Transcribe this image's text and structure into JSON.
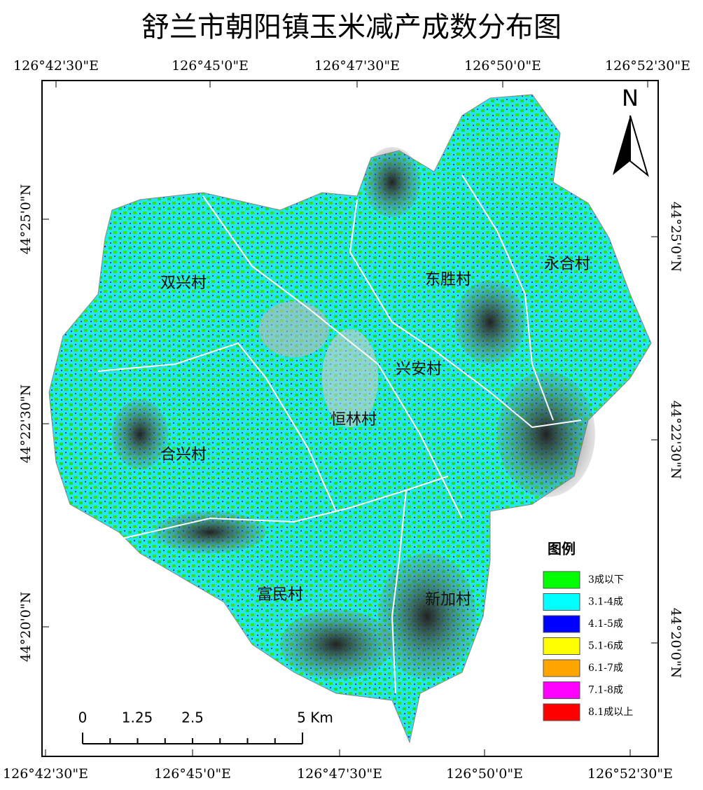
{
  "title": "舒兰市朝阳镇玉米减产成数分布图",
  "graticule": {
    "top": [
      "126°42'30\"E",
      "126°45'0\"E",
      "126°47'30\"E",
      "126°50'0\"E",
      "126°52'30\"E"
    ],
    "bottom": [
      "126°42'30\"E",
      "126°45'0\"E",
      "126°47'30\"E",
      "126°50'0\"E",
      "126°52'30\"E"
    ],
    "left": [
      "44°25'0\"N",
      "44°22'30\"N",
      "44°20'0\"N"
    ],
    "right": [
      "44°25'0\"N",
      "44°22'30\"N",
      "44°20'0\"N"
    ]
  },
  "north": "N",
  "villages": [
    "双兴村",
    "东胜村",
    "永合村",
    "兴安村",
    "恒林村",
    "合兴村",
    "富民村",
    "新加村"
  ],
  "legend": {
    "title": "图例",
    "items": [
      {
        "label": "3成以下",
        "color": "#00ff00"
      },
      {
        "label": "3.1-4成",
        "color": "#00ffff"
      },
      {
        "label": "4.1-5成",
        "color": "#0000ff"
      },
      {
        "label": "5.1-6成",
        "color": "#ffff00"
      },
      {
        "label": "6.1-7成",
        "color": "#ffa500"
      },
      {
        "label": "7.1-8成",
        "color": "#ff00ff"
      },
      {
        "label": "8.1成以上",
        "color": "#ff0000"
      }
    ]
  },
  "scale_bar": [
    "0",
    "1.25",
    "2.5",
    "5 Km"
  ]
}
